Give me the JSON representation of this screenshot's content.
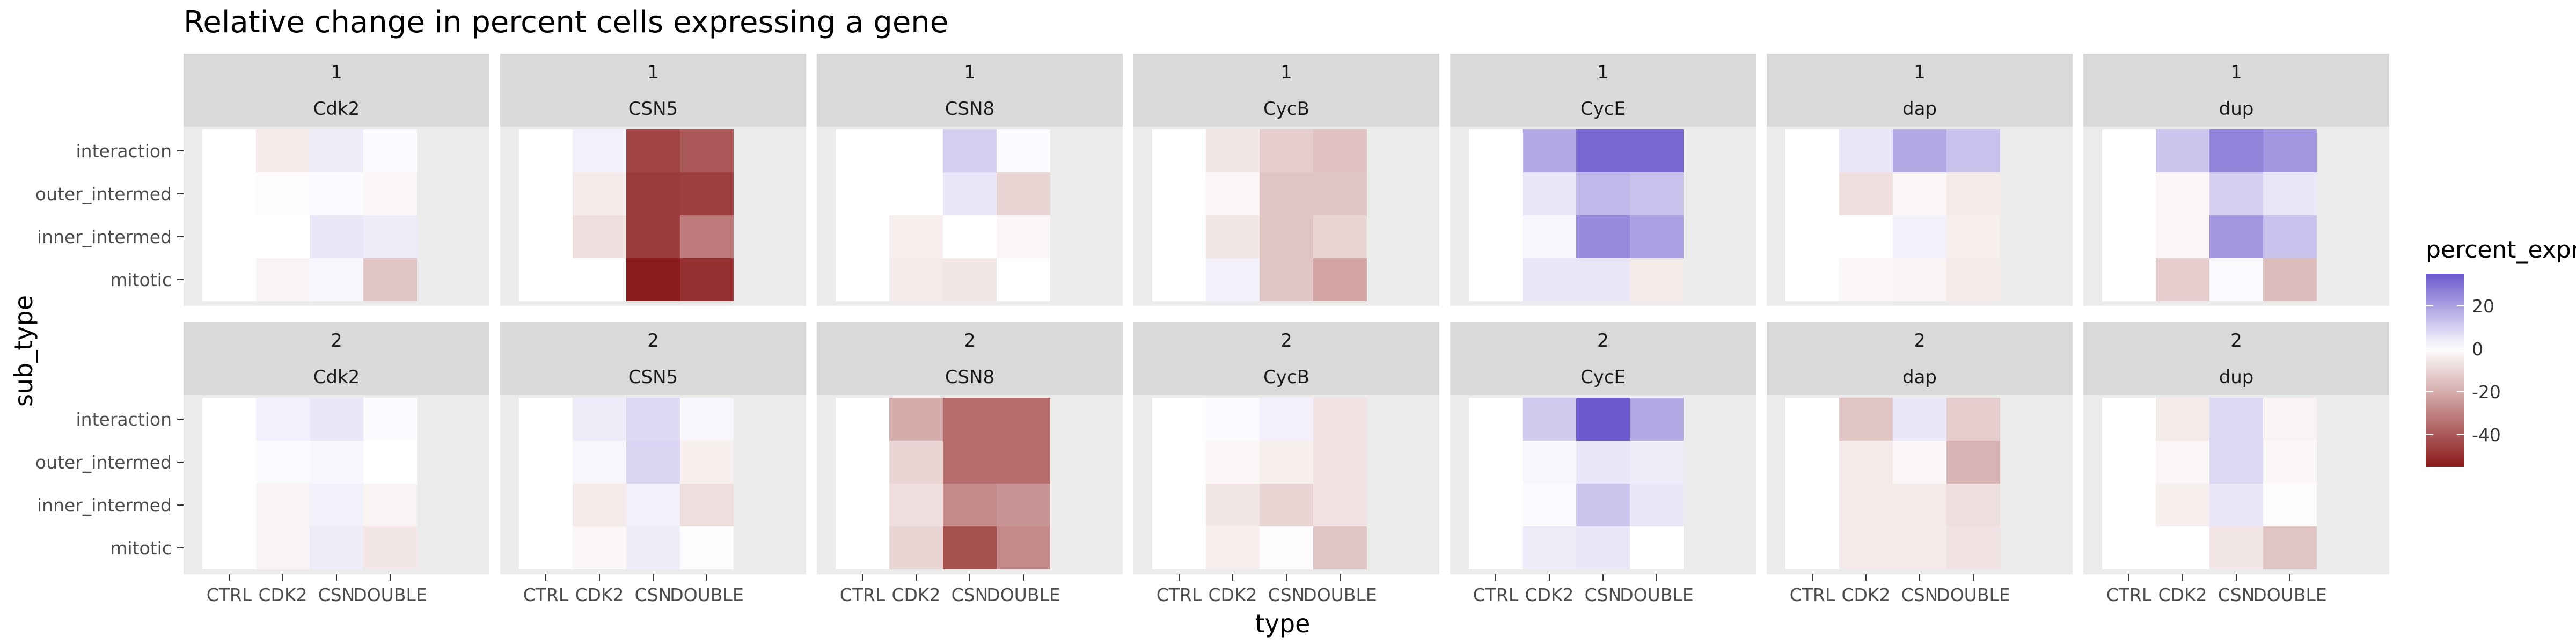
{
  "chart_data": {
    "type": "heatmap",
    "title": "Relative change in percent cells expressing a gene",
    "xlabel": "type",
    "ylabel": "sub_type",
    "x_categories": [
      "CTRL",
      "CDK2",
      "CSN",
      "DOUBLE"
    ],
    "y_categories": [
      "interaction",
      "outer_intermed",
      "inner_intermed",
      "mitotic"
    ],
    "facet_rows": [
      "1",
      "2"
    ],
    "facet_cols": [
      "Cdk2",
      "CSN5",
      "CSN8",
      "CycB",
      "CycE",
      "dap",
      "dup"
    ],
    "legend": {
      "title": "percent_expr",
      "ticks": [
        20,
        0,
        -20,
        -40
      ],
      "range": [
        -55,
        35
      ],
      "colors": {
        "high": "#6a5acd",
        "mid": "#ffffff",
        "low": "#8b1a1a"
      }
    },
    "panels": [
      {
        "row": "1",
        "gene": "Cdk2",
        "values": [
          [
            0,
            -5,
            4,
            1
          ],
          [
            0,
            -1,
            1,
            -2
          ],
          [
            0,
            0,
            5,
            4
          ],
          [
            0,
            -3,
            2,
            -14
          ]
        ]
      },
      {
        "row": "1",
        "gene": "CSN5",
        "values": [
          [
            0,
            3,
            -45,
            -40
          ],
          [
            0,
            -5,
            -47,
            -46
          ],
          [
            0,
            -8,
            -47,
            -32
          ],
          [
            0,
            0,
            -55,
            -50
          ]
        ]
      },
      {
        "row": "1",
        "gene": "CSN8",
        "values": [
          [
            0,
            0,
            10,
            1
          ],
          [
            0,
            0,
            5,
            -10
          ],
          [
            0,
            -4,
            0,
            -2
          ],
          [
            0,
            -5,
            -6,
            0
          ]
        ]
      },
      {
        "row": "1",
        "gene": "CycB",
        "values": [
          [
            0,
            -6,
            -12,
            -15
          ],
          [
            0,
            -2,
            -14,
            -14
          ],
          [
            0,
            -6,
            -14,
            -10
          ],
          [
            0,
            3,
            -14,
            -22
          ]
        ]
      },
      {
        "row": "1",
        "gene": "CycE",
        "values": [
          [
            0,
            18,
            32,
            32
          ],
          [
            0,
            5,
            15,
            13
          ],
          [
            0,
            2,
            25,
            20
          ],
          [
            0,
            5,
            5,
            -5
          ]
        ]
      },
      {
        "row": "1",
        "gene": "dap",
        "values": [
          [
            0,
            5,
            18,
            13
          ],
          [
            0,
            -8,
            -2,
            -5
          ],
          [
            0,
            0,
            3,
            -4
          ],
          [
            0,
            -2,
            -3,
            -5
          ]
        ]
      },
      {
        "row": "1",
        "gene": "dup",
        "values": [
          [
            0,
            12,
            26,
            22
          ],
          [
            0,
            -2,
            10,
            5
          ],
          [
            0,
            -2,
            22,
            13
          ],
          [
            0,
            -12,
            1,
            -16
          ]
        ]
      },
      {
        "row": "2",
        "gene": "Cdk2",
        "values": [
          [
            0,
            3,
            5,
            1
          ],
          [
            0,
            1,
            2,
            0
          ],
          [
            0,
            -3,
            3,
            -3
          ],
          [
            0,
            -3,
            4,
            -6
          ]
        ]
      },
      {
        "row": "2",
        "gene": "CSN5",
        "values": [
          [
            0,
            4,
            8,
            2
          ],
          [
            0,
            2,
            9,
            -4
          ],
          [
            0,
            -5,
            3,
            -8
          ],
          [
            0,
            -2,
            4,
            -1
          ]
        ]
      },
      {
        "row": "2",
        "gene": "CSN8",
        "values": [
          [
            0,
            -20,
            -35,
            -35
          ],
          [
            0,
            -10,
            -35,
            -35
          ],
          [
            0,
            -8,
            -28,
            -26
          ],
          [
            0,
            -10,
            -42,
            -28
          ]
        ]
      },
      {
        "row": "2",
        "gene": "CycB",
        "values": [
          [
            0,
            1,
            3,
            -7
          ],
          [
            0,
            -2,
            -4,
            -7
          ],
          [
            0,
            -6,
            -10,
            -7
          ],
          [
            0,
            -4,
            -1,
            -14
          ]
        ]
      },
      {
        "row": "2",
        "gene": "CycE",
        "values": [
          [
            0,
            11,
            35,
            18
          ],
          [
            0,
            2,
            5,
            4
          ],
          [
            0,
            1,
            12,
            5
          ],
          [
            0,
            4,
            5,
            0
          ]
        ]
      },
      {
        "row": "2",
        "gene": "dap",
        "values": [
          [
            0,
            -14,
            5,
            -12
          ],
          [
            0,
            -5,
            -2,
            -18
          ],
          [
            0,
            -5,
            -5,
            -8
          ],
          [
            0,
            -5,
            -5,
            -7
          ]
        ]
      },
      {
        "row": "2",
        "gene": "dup",
        "values": [
          [
            0,
            -5,
            8,
            -3
          ],
          [
            0,
            -2,
            8,
            -2
          ],
          [
            0,
            -4,
            5,
            -1
          ],
          [
            0,
            0,
            -6,
            -14
          ]
        ]
      }
    ]
  }
}
